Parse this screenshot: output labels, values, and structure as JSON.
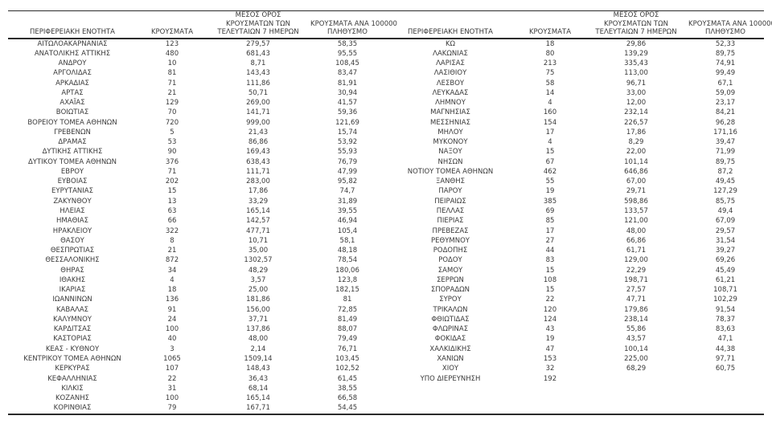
{
  "colors": {
    "text": "#3a3a3a",
    "border": "#2b2b2b",
    "background": "#ffffff"
  },
  "table": {
    "headers": {
      "region": "ΠΕΡΙΦΕΡΕΙΑΚΗ ΕΝΟΤΗΤΑ",
      "cases": "ΚΡΟΥΣΜΑΤΑ",
      "avg7_line1": "ΜΕΣΟΣ ΟΡΟΣ",
      "avg7_line2": "ΚΡΟΥΣΜΑΤΩΝ ΤΩΝ",
      "avg7_line3": "ΤΕΛΕΥΤΑΙΩΝ 7 ΗΜΕΡΩΝ",
      "per100k_line1": "ΚΡΟΥΣΜΑΤΑ ΑΝΑ 100000",
      "per100k_line2": "ΠΛΗΘΥΣΜΟ"
    },
    "left_rows": [
      [
        "ΑΙΤΩΛΟΑΚΑΡΝΑΝΙΑΣ",
        "123",
        "279,57",
        "58,35"
      ],
      [
        "ΑΝΑΤΟΛΙΚΗΣ ΑΤΤΙΚΗΣ",
        "480",
        "681,43",
        "95,55"
      ],
      [
        "ΑΝΔΡΟΥ",
        "10",
        "8,71",
        "108,45"
      ],
      [
        "ΑΡΓΟΛΙΔΑΣ",
        "81",
        "143,43",
        "83,47"
      ],
      [
        "ΑΡΚΑΔΙΑΣ",
        "71",
        "111,86",
        "81,91"
      ],
      [
        "ΑΡΤΑΣ",
        "21",
        "50,71",
        "30,94"
      ],
      [
        "ΑΧΑΪΑΣ",
        "129",
        "269,00",
        "41,57"
      ],
      [
        "ΒΟΙΩΤΙΑΣ",
        "70",
        "141,71",
        "59,36"
      ],
      [
        "ΒΟΡΕΙΟΥ ΤΟΜΕΑ ΑΘΗΝΩΝ",
        "720",
        "999,00",
        "121,69"
      ],
      [
        "ΓΡΕΒΕΝΩΝ",
        "5",
        "21,43",
        "15,74"
      ],
      [
        "ΔΡΑΜΑΣ",
        "53",
        "86,86",
        "53,92"
      ],
      [
        "ΔΥΤΙΚΗΣ ΑΤΤΙΚΗΣ",
        "90",
        "169,43",
        "55,93"
      ],
      [
        "ΔΥΤΙΚΟΥ ΤΟΜΕΑ ΑΘΗΝΩΝ",
        "376",
        "638,43",
        "76,79"
      ],
      [
        "ΕΒΡΟΥ",
        "71",
        "111,71",
        "47,99"
      ],
      [
        "ΕΥΒΟΙΑΣ",
        "202",
        "283,00",
        "95,82"
      ],
      [
        "ΕΥΡΥΤΑΝΙΑΣ",
        "15",
        "17,86",
        "74,7"
      ],
      [
        "ΖΑΚΥΝΘΟΥ",
        "13",
        "33,29",
        "31,89"
      ],
      [
        "ΗΛΕΙΑΣ",
        "63",
        "165,14",
        "39,55"
      ],
      [
        "ΗΜΑΘΙΑΣ",
        "66",
        "142,57",
        "46,94"
      ],
      [
        "ΗΡΑΚΛΕΙΟΥ",
        "322",
        "477,71",
        "105,4"
      ],
      [
        "ΘΑΣΟΥ",
        "8",
        "10,71",
        "58,1"
      ],
      [
        "ΘΕΣΠΡΩΤΙΑΣ",
        "21",
        "35,00",
        "48,18"
      ],
      [
        "ΘΕΣΣΑΛΟΝΙΚΗΣ",
        "872",
        "1302,57",
        "78,54"
      ],
      [
        "ΘΗΡΑΣ",
        "34",
        "48,29",
        "180,06"
      ],
      [
        "ΙΘΑΚΗΣ",
        "4",
        "3,57",
        "123,8"
      ],
      [
        "ΙΚΑΡΙΑΣ",
        "18",
        "25,00",
        "182,15"
      ],
      [
        "ΙΩΑΝΝΙΝΩΝ",
        "136",
        "181,86",
        "81"
      ],
      [
        "ΚΑΒΑΛΑΣ",
        "91",
        "156,00",
        "72,85"
      ],
      [
        "ΚΑΛΥΜΝΟΥ",
        "24",
        "37,71",
        "81,49"
      ],
      [
        "ΚΑΡΔΙΤΣΑΣ",
        "100",
        "137,86",
        "88,07"
      ],
      [
        "ΚΑΣΤΟΡΙΑΣ",
        "40",
        "48,00",
        "79,49"
      ],
      [
        "ΚΕΑΣ - ΚΥΘΝΟΥ",
        "3",
        "2,14",
        "76,71"
      ],
      [
        "ΚΕΝΤΡΙΚΟΥ ΤΟΜΕΑ ΑΘΗΝΩΝ",
        "1065",
        "1509,14",
        "103,45"
      ],
      [
        "ΚΕΡΚΥΡΑΣ",
        "107",
        "148,43",
        "102,52"
      ],
      [
        "ΚΕΦΑΛΛΗΝΙΑΣ",
        "22",
        "36,43",
        "61,45"
      ],
      [
        "ΚΙΛΚΙΣ",
        "31",
        "68,14",
        "38,55"
      ],
      [
        "ΚΟΖΑΝΗΣ",
        "100",
        "165,14",
        "66,58"
      ],
      [
        "ΚΟΡΙΝΘΙΑΣ",
        "79",
        "167,71",
        "54,45"
      ]
    ],
    "right_rows": [
      [
        "ΚΩ",
        "18",
        "29,86",
        "52,33"
      ],
      [
        "ΛΑΚΩΝΙΑΣ",
        "80",
        "139,29",
        "89,75"
      ],
      [
        "ΛΑΡΙΣΑΣ",
        "213",
        "335,43",
        "74,91"
      ],
      [
        "ΛΑΣΙΘΙΟΥ",
        "75",
        "113,00",
        "99,49"
      ],
      [
        "ΛΕΣΒΟΥ",
        "58",
        "96,71",
        "67,1"
      ],
      [
        "ΛΕΥΚΑΔΑΣ",
        "14",
        "33,00",
        "59,09"
      ],
      [
        "ΛΗΜΝΟΥ",
        "4",
        "12,00",
        "23,17"
      ],
      [
        "ΜΑΓΝΗΣΙΑΣ",
        "160",
        "232,14",
        "84,21"
      ],
      [
        "ΜΕΣΣΗΝΙΑΣ",
        "154",
        "226,57",
        "96,28"
      ],
      [
        "ΜΗΛΟΥ",
        "17",
        "17,86",
        "171,16"
      ],
      [
        "ΜΥΚΟΝΟΥ",
        "4",
        "8,29",
        "39,47"
      ],
      [
        "ΝΑΞΟΥ",
        "15",
        "22,00",
        "71,99"
      ],
      [
        "ΝΗΣΩΝ",
        "67",
        "101,14",
        "89,75"
      ],
      [
        "ΝΟΤΙΟΥ ΤΟΜΕΑ ΑΘΗΝΩΝ",
        "462",
        "646,86",
        "87,2"
      ],
      [
        "ΞΑΝΘΗΣ",
        "55",
        "67,00",
        "49,45"
      ],
      [
        "ΠΑΡΟΥ",
        "19",
        "29,71",
        "127,29"
      ],
      [
        "ΠΕΙΡΑΙΩΣ",
        "385",
        "598,86",
        "85,75"
      ],
      [
        "ΠΕΛΛΑΣ",
        "69",
        "133,57",
        "49,4"
      ],
      [
        "ΠΙΕΡΙΑΣ",
        "85",
        "121,00",
        "67,09"
      ],
      [
        "ΠΡΕΒΕΖΑΣ",
        "17",
        "48,00",
        "29,57"
      ],
      [
        "ΡΕΘΥΜΝΟΥ",
        "27",
        "66,86",
        "31,54"
      ],
      [
        "ΡΟΔΟΠΗΣ",
        "44",
        "61,71",
        "39,27"
      ],
      [
        "ΡΟΔΟΥ",
        "83",
        "129,00",
        "69,26"
      ],
      [
        "ΣΑΜΟΥ",
        "15",
        "22,29",
        "45,49"
      ],
      [
        "ΣΕΡΡΩΝ",
        "108",
        "198,71",
        "61,21"
      ],
      [
        "ΣΠΟΡΑΔΩΝ",
        "15",
        "27,57",
        "108,71"
      ],
      [
        "ΣΥΡΟΥ",
        "22",
        "47,71",
        "102,29"
      ],
      [
        "ΤΡΙΚΑΛΩΝ",
        "120",
        "179,86",
        "91,54"
      ],
      [
        "ΦΘΙΩΤΙΔΑΣ",
        "124",
        "238,14",
        "78,37"
      ],
      [
        "ΦΛΩΡΙΝΑΣ",
        "43",
        "55,86",
        "83,63"
      ],
      [
        "ΦΟΚΙΔΑΣ",
        "19",
        "43,57",
        "47,1"
      ],
      [
        "ΧΑΛΚΙΔΙΚΗΣ",
        "47",
        "100,14",
        "44,38"
      ],
      [
        "ΧΑΝΙΩΝ",
        "153",
        "225,00",
        "97,71"
      ],
      [
        "ΧΙΟΥ",
        "32",
        "68,29",
        "60,75"
      ],
      [
        "ΥΠΟ ΔΙΕΡΕΥΝΗΣΗ",
        "192",
        "",
        ""
      ]
    ]
  }
}
